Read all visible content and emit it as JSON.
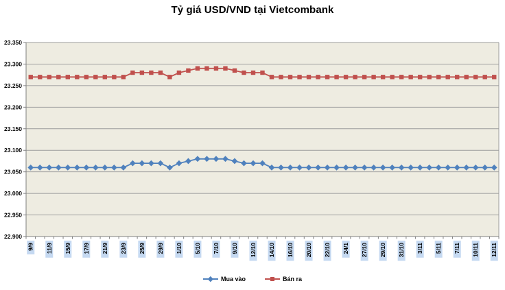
{
  "title": "Tỷ giá USD/VND tại Vietcombank",
  "legend": {
    "items": [
      {
        "id": "mua-vao",
        "label": "Mua vào",
        "color": "#4F81BD",
        "marker": "diamond"
      },
      {
        "id": "ban-ra",
        "label": "Bán ra",
        "color": "#C0504D",
        "marker": "square"
      }
    ]
  },
  "chart_data": {
    "type": "line",
    "title": "Tỷ giá USD/VND tại Vietcombank",
    "xlabel": "",
    "ylabel": "",
    "ylim": [
      22900,
      23350
    ],
    "y_tick_step": 50,
    "y_tick_labels": [
      "23.350",
      "23.300",
      "23.250",
      "23.200",
      "23.150",
      "23.100",
      "23.050",
      "23.000",
      "22.950",
      "22.900"
    ],
    "x_tick_labels_visible": [
      "9/9",
      "11/9",
      "15/9",
      "17/9",
      "21/9",
      "23/9",
      "25/9",
      "29/9",
      "1/10",
      "5/10",
      "7/10",
      "9/10",
      "12/10",
      "14/10",
      "16/10",
      "20/10",
      "22/10",
      "24/1",
      "27/10",
      "29/10",
      "31/10",
      "3/11",
      "5/11",
      "7/11",
      "10/11",
      "12/11"
    ],
    "x_label_every": 2,
    "n_points": 51,
    "grid": true,
    "legend_position": "bottom",
    "plot_bg_color": "#EEECE1",
    "grid_color": "#9C9C9C",
    "axis_color": "#7F7F7F",
    "x_label_highlight_color": "#C5D9F1",
    "tick_label_color": "#000000",
    "series": [
      {
        "id": "mua-vao",
        "name": "Mua vào",
        "color": "#4F81BD",
        "marker": "diamond",
        "values": [
          23060,
          23060,
          23060,
          23060,
          23060,
          23060,
          23060,
          23060,
          23060,
          23060,
          23060,
          23070,
          23070,
          23070,
          23070,
          23060,
          23070,
          23075,
          23080,
          23080,
          23080,
          23080,
          23075,
          23070,
          23070,
          23070,
          23060,
          23060,
          23060,
          23060,
          23060,
          23060,
          23060,
          23060,
          23060,
          23060,
          23060,
          23060,
          23060,
          23060,
          23060,
          23060,
          23060,
          23060,
          23060,
          23060,
          23060,
          23060,
          23060,
          23060,
          23060
        ]
      },
      {
        "id": "ban-ra",
        "name": "Bán ra",
        "color": "#C0504D",
        "marker": "square",
        "values": [
          23270,
          23270,
          23270,
          23270,
          23270,
          23270,
          23270,
          23270,
          23270,
          23270,
          23270,
          23280,
          23280,
          23280,
          23280,
          23270,
          23280,
          23285,
          23290,
          23290,
          23290,
          23290,
          23285,
          23280,
          23280,
          23280,
          23270,
          23270,
          23270,
          23270,
          23270,
          23270,
          23270,
          23270,
          23270,
          23270,
          23270,
          23270,
          23270,
          23270,
          23270,
          23270,
          23270,
          23270,
          23270,
          23270,
          23270,
          23270,
          23270,
          23270,
          23270
        ]
      }
    ]
  }
}
